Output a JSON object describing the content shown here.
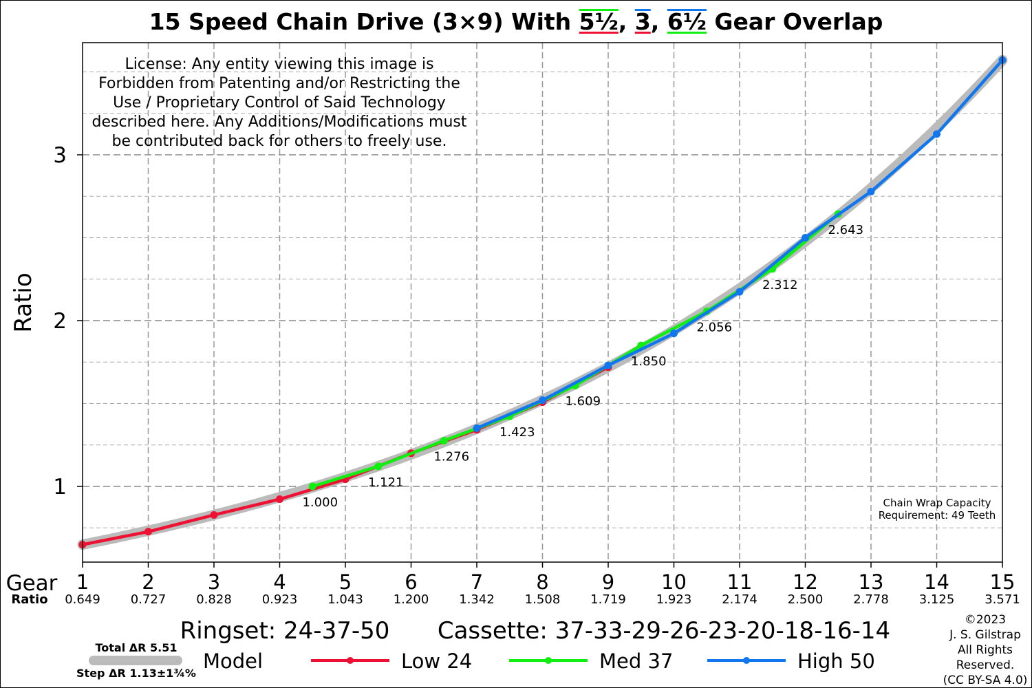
{
  "title": {
    "prefix": "15 Speed Chain Drive (3×9) With ",
    "overlap1": "5½",
    "sep1": ", ",
    "overlap2": "3",
    "sep2": ", ",
    "overlap3": "6½",
    "suffix": " Gear Overlap"
  },
  "colors": {
    "low": "#ee1133",
    "med": "#11ee11",
    "high": "#1177ee",
    "model": "#bbbbbb",
    "license": "#c8102e",
    "grid": "#999999"
  },
  "license": [
    "License: Any entity viewing this image is",
    "Forbidden from Patenting and/or Restricting the",
    "Use / Proprietary Control of Said Technology",
    "described here. Any Additions/Modifications must",
    "be contributed back for others to freely use."
  ],
  "chain_wrap": [
    "Chain Wrap Capacity",
    "Requirement: 49 Teeth"
  ],
  "bottom": {
    "ringset": "Ringset: 24-37-50",
    "cassette": "Cassette: 37-33-29-26-23-20-18-16-14",
    "copyright": [
      "©2023",
      "J. S. Gilstrap",
      "All Rights",
      "Reserved.",
      "(CC BY-SA 4.0)"
    ]
  },
  "legend": {
    "total": "Total ΔR 5.51",
    "step": "Step ΔR 1.13±1¾%",
    "model": "Model",
    "low": "Low 24",
    "med": "Med 37",
    "high": "High 50"
  },
  "chart_data": {
    "type": "line",
    "ylabel": "Ratio",
    "xlabel": "Gear",
    "xrow_label": "Ratio",
    "xlim": [
      1,
      15
    ],
    "ylim": [
      0.55,
      3.65
    ],
    "yticks": [
      1,
      2,
      3
    ],
    "grid": true,
    "gears": [
      1,
      2,
      3,
      4,
      5,
      6,
      7,
      8,
      9,
      10,
      11,
      12,
      13,
      14,
      15
    ],
    "gear_ratios": [
      "0.649",
      "0.727",
      "0.828",
      "0.923",
      "1.043",
      "1.200",
      "1.342",
      "1.508",
      "1.719",
      "1.923",
      "2.174",
      "2.500",
      "2.778",
      "3.125",
      "3.571"
    ],
    "model": {
      "name": "Model",
      "x_start": 1,
      "x_end": 15,
      "y_start": 0.649,
      "y_end": 3.571
    },
    "series": [
      {
        "name": "Low 24",
        "x": [
          1,
          2,
          3,
          4,
          5,
          6,
          7,
          8,
          9
        ],
        "y": [
          0.649,
          0.727,
          0.828,
          0.923,
          1.043,
          1.2,
          1.342,
          1.508,
          1.719
        ]
      },
      {
        "name": "Med 37",
        "x": [
          4.5,
          5.5,
          6.5,
          7.5,
          8.5,
          9.5,
          10.5,
          11.5,
          12.5
        ],
        "y": [
          1.0,
          1.121,
          1.276,
          1.423,
          1.609,
          1.85,
          2.056,
          2.312,
          2.643
        ]
      },
      {
        "name": "High 50",
        "x": [
          7,
          8,
          9,
          10,
          11,
          12,
          13,
          14,
          15
        ],
        "y": [
          1.351,
          1.52,
          1.73,
          1.923,
          2.174,
          2.5,
          2.778,
          3.125,
          3.571
        ]
      }
    ],
    "annotations": [
      {
        "x": 4.5,
        "y": 1.0,
        "text": "1.000"
      },
      {
        "x": 5.5,
        "y": 1.121,
        "text": "1.121"
      },
      {
        "x": 6.5,
        "y": 1.276,
        "text": "1.276"
      },
      {
        "x": 7.5,
        "y": 1.423,
        "text": "1.423"
      },
      {
        "x": 8.5,
        "y": 1.609,
        "text": "1.609"
      },
      {
        "x": 9.5,
        "y": 1.85,
        "text": "1.850"
      },
      {
        "x": 10.5,
        "y": 2.056,
        "text": "2.056"
      },
      {
        "x": 11.5,
        "y": 2.312,
        "text": "2.312"
      },
      {
        "x": 12.5,
        "y": 2.643,
        "text": "2.643"
      }
    ]
  }
}
